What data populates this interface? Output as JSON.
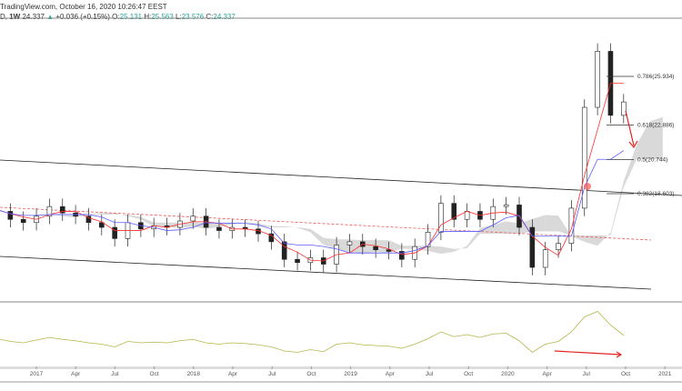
{
  "header": {
    "source_line": "TradingView.com, October 16, 2020 10:26:47 EEST",
    "symbol": "D,",
    "interval": "1W",
    "last": "24.337",
    "change_arrow": "▲",
    "change": "+0.036 (+0.15%)",
    "o_label": "O:",
    "o": "25.131",
    "h_label": "H:",
    "h": "25.563",
    "l_label": "L:",
    "l": "23.576",
    "c_label": "C:",
    "c": "24.337"
  },
  "colors": {
    "up": "#26a69a",
    "candle": "#222222",
    "conversion_line": "#ff2d2d",
    "base_line": "#5b5bff",
    "cloud": "#d0d0d0",
    "rsi": "#b5b54a",
    "arrow": "#e52222"
  },
  "chart_data": {
    "type": "candlestick",
    "x_ticks": [
      "2017",
      "Apr",
      "Jul",
      "Oct",
      "2018",
      "Apr",
      "Jul",
      "Oct",
      "2019",
      "Apr",
      "Jul",
      "Oct",
      "2020",
      "Apr",
      "Jul",
      "Oct",
      "2021"
    ],
    "start": "2016-10",
    "close": [
      17.5,
      17.0,
      16.8,
      17.2,
      17.8,
      17.4,
      17.2,
      16.8,
      16.5,
      15.8,
      16.8,
      16.4,
      16.6,
      16.5,
      16.9,
      17.2,
      16.5,
      16.3,
      16.5,
      16.4,
      16.1,
      15.6,
      14.5,
      14.3,
      14.6,
      14.2,
      15.4,
      15.6,
      15.3,
      15.1,
      15.0,
      14.5,
      15.3,
      16.2,
      18.0,
      17.0,
      17.5,
      17.0,
      17.8,
      17.9,
      16.5,
      14.0,
      15.1,
      15.5,
      17.7,
      24.0,
      27.5,
      23.5,
      24.337
    ],
    "fib_levels": [
      {
        "label": "0.786(25.934)",
        "price": 25.934
      },
      {
        "label": "0.618(22.886)",
        "price": 22.886
      },
      {
        "label": "0.5(20.744)",
        "price": 20.744
      },
      {
        "label": "0.382(18.603)",
        "price": 18.603
      }
    ],
    "rsi": [
      50,
      46,
      44,
      48,
      52,
      49,
      47,
      44,
      42,
      38,
      46,
      44,
      45,
      44,
      47,
      49,
      44,
      42,
      44,
      43,
      41,
      38,
      32,
      30,
      34,
      31,
      42,
      44,
      41,
      40,
      39,
      36,
      42,
      50,
      60,
      53,
      56,
      52,
      57,
      58,
      47,
      30,
      42,
      46,
      60,
      82,
      90,
      70,
      55
    ]
  }
}
